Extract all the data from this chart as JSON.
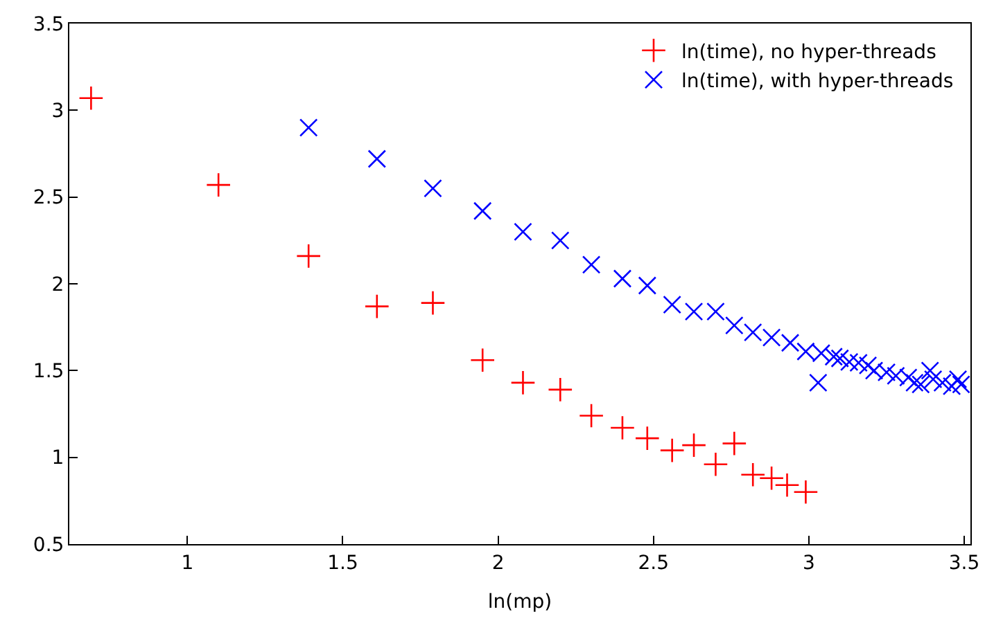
{
  "chart_data": {
    "type": "scatter",
    "xlabel": "ln(mp)",
    "xlim": [
      0.62,
      3.52
    ],
    "xticks": [
      1,
      1.5,
      2,
      2.5,
      3,
      3.5
    ],
    "ylim": [
      0.5,
      3.5
    ],
    "yticks": [
      0.5,
      1,
      1.5,
      2,
      2.5,
      3,
      3.5
    ],
    "legend": "top right",
    "series": [
      {
        "name": "ln(time), no hyper-threads",
        "color": "#ff0000",
        "marker": "cross",
        "x": [
          0.69,
          1.1,
          1.39,
          1.61,
          1.79,
          1.95,
          2.08,
          2.2,
          2.3,
          2.4,
          2.48,
          2.56,
          2.63,
          2.7,
          2.76,
          2.82,
          2.88,
          2.93,
          2.99
        ],
        "values": [
          3.07,
          2.57,
          2.16,
          1.87,
          1.89,
          1.56,
          1.43,
          1.39,
          1.24,
          1.17,
          1.11,
          1.04,
          1.07,
          0.96,
          1.08,
          0.9,
          0.88,
          0.84,
          0.8
        ]
      },
      {
        "name": "ln(time), with hyper-threads",
        "color": "#0000ff",
        "marker": "x",
        "x": [
          1.39,
          1.61,
          1.79,
          1.95,
          2.08,
          2.2,
          2.3,
          2.4,
          2.48,
          2.56,
          2.63,
          2.7,
          2.76,
          2.82,
          2.88,
          2.94,
          2.99,
          3.03,
          3.04,
          3.08,
          3.1,
          3.13,
          3.16,
          3.19,
          3.21,
          3.25,
          3.28,
          3.32,
          3.34,
          3.36,
          3.39,
          3.4,
          3.43,
          3.46,
          3.48,
          3.49
        ],
        "values": [
          2.9,
          2.72,
          2.55,
          2.42,
          2.3,
          2.25,
          2.11,
          2.03,
          1.99,
          1.88,
          1.84,
          1.84,
          1.76,
          1.72,
          1.69,
          1.66,
          1.61,
          1.43,
          1.6,
          1.58,
          1.57,
          1.55,
          1.545,
          1.53,
          1.5,
          1.49,
          1.47,
          1.46,
          1.43,
          1.42,
          1.5,
          1.45,
          1.43,
          1.41,
          1.45,
          1.42
        ]
      }
    ]
  }
}
